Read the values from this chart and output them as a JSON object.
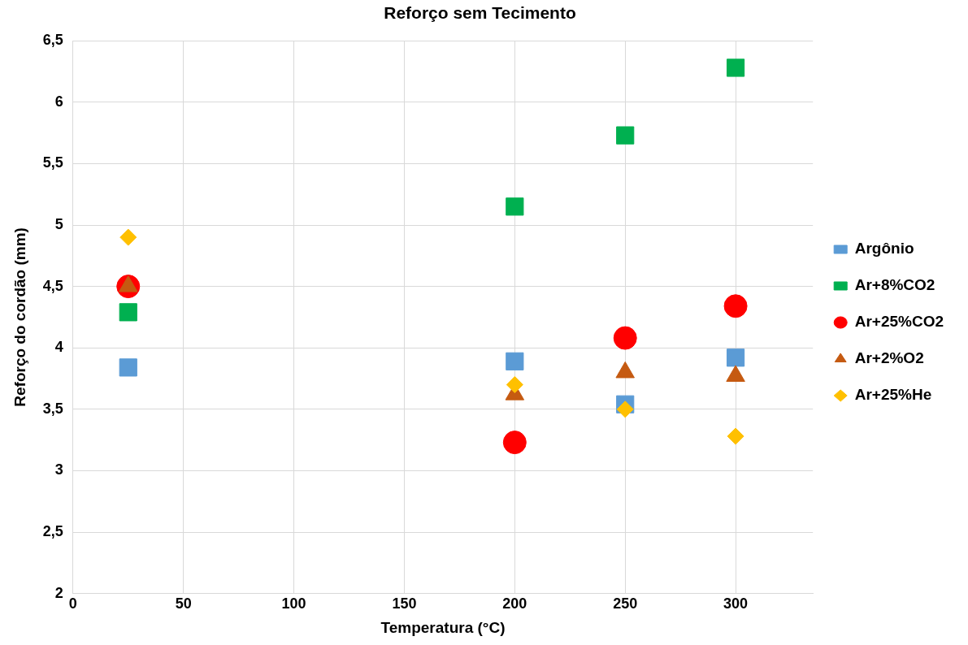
{
  "chart_data": {
    "type": "scatter",
    "title": "Reforço sem Tecimento",
    "xlabel": "Temperatura (°C)",
    "ylabel": "Reforço do cordão (mm)",
    "x": [
      25,
      200,
      250,
      300
    ],
    "series": [
      {
        "name": "Argônio",
        "color": "#5b9bd5",
        "marker": "square",
        "values": [
          3.84,
          3.89,
          3.54,
          3.92
        ]
      },
      {
        "name": "Ar+8%CO2",
        "color": "#00b050",
        "marker": "square",
        "values": [
          4.29,
          5.15,
          5.73,
          6.28
        ]
      },
      {
        "name": "Ar+25%CO2",
        "color": "#ff0000",
        "marker": "circle",
        "values": [
          4.5,
          3.23,
          4.08,
          4.34
        ]
      },
      {
        "name": "Ar+2%O2",
        "color": "#c55a11",
        "marker": "triangle",
        "values": [
          4.5,
          3.62,
          3.8,
          3.77
        ]
      },
      {
        "name": "Ar+25%He",
        "color": "#ffc000",
        "marker": "diamond",
        "values": [
          4.9,
          3.7,
          3.5,
          3.28
        ]
      }
    ],
    "xlim": [
      0,
      335
    ],
    "xticks": [
      0,
      50,
      100,
      150,
      200,
      250,
      300
    ],
    "ylim": [
      2,
      6.5
    ],
    "yticks": [
      2,
      {
        "value": 2.5,
        "label": "2,5"
      },
      3,
      {
        "value": 3.5,
        "label": "3,5"
      },
      4,
      {
        "value": 4.5,
        "label": "4,5"
      },
      5,
      {
        "value": 5.5,
        "label": "5,5"
      },
      6,
      {
        "value": 6.5,
        "label": "6,5"
      }
    ],
    "grid": true,
    "legend": "right"
  }
}
